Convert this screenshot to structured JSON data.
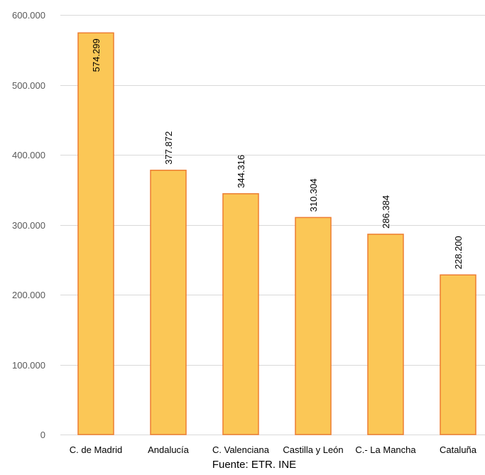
{
  "chart_data": {
    "type": "bar",
    "categories": [
      "C. de Madrid",
      "Andalucía",
      "C. Valenciana",
      "Castilla y León",
      "C.- La Mancha",
      "Cataluña"
    ],
    "values": [
      574299,
      377872,
      344316,
      310304,
      286384,
      228200
    ],
    "data_labels": [
      "574.299",
      "377.872",
      "344.316",
      "310.304",
      "286.384",
      "228.200"
    ],
    "y_ticks": [
      0,
      100000,
      200000,
      300000,
      400000,
      500000,
      600000
    ],
    "y_tick_labels": [
      "0",
      "100.000",
      "200.000",
      "300.000",
      "400.000",
      "500.000",
      "600.000"
    ],
    "ylim": [
      0,
      600000
    ],
    "grid": true,
    "legend": "none",
    "source": "Fuente: ETR. INE",
    "colors": {
      "bar_fill": "#fbc756",
      "bar_stroke": "#ed7d31",
      "grid": "#d9d9d9"
    }
  }
}
